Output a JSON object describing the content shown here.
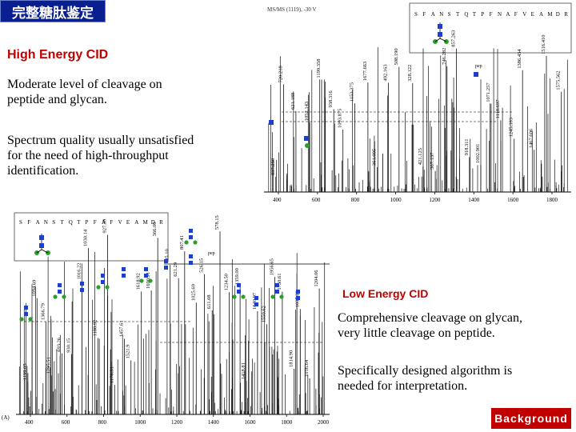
{
  "header": {
    "title": "完整糖肽鉴定"
  },
  "high_energy": {
    "heading": "High Energy CID",
    "text1_line1": "Moderate level of cleavage on",
    "text1_line2": "peptide and glycan.",
    "text2_line1": "Spectrum quality usually unsatisfied",
    "text2_line2": "for the need of high-throughput",
    "text2_line3": "identification."
  },
  "low_energy": {
    "heading": "Low Energy CID",
    "text1_line1": "Comprehensive cleavage on glycan,",
    "text1_line2": "very little cleavage on peptide.",
    "text2_line1": "Specifically designed algorithm is",
    "text2_line2": "needed for interpretation."
  },
  "footer": {
    "badge": "Background"
  },
  "spectrum_top": {
    "caption": "MS/MS (1119), -30 V",
    "sequence": [
      "S",
      "F",
      "A",
      "N",
      "S",
      "T",
      "Q",
      "T",
      "P",
      "F",
      "N",
      "A",
      "F",
      "V",
      "E",
      "A",
      "M",
      "D",
      "R"
    ],
    "peak_labels": [
      "837.250",
      "720.218",
      "621.188",
      "1052.143",
      "1199.358",
      "938.316",
      "1093.875",
      "1153.375",
      "1677.663",
      "361.095",
      "492.163",
      "508.190",
      "328.122",
      "421.125",
      "367.137",
      "746.282",
      "857.263",
      "918.311",
      "1002.901",
      "1071.257",
      "1118.697",
      "1245.393",
      "1386.434",
      "1467.606",
      "1516.410",
      "1575.562"
    ],
    "x_ticks": [
      "400",
      "600",
      "800",
      "1000",
      "1200",
      "1400",
      "1600",
      "1800"
    ],
    "annotation": "pep"
  },
  "spectrum_bottom": {
    "panel_label": "(A)",
    "sequence": [
      "S",
      "F",
      "A",
      "N",
      "S",
      "T",
      "Q",
      "T",
      "P",
      "F",
      "A",
      "F",
      "V",
      "E",
      "A",
      "M",
      "D",
      "R"
    ],
    "peak_labels": [
      "1199.05",
      "1094.69",
      "1366.79",
      "1295.51",
      "693.26",
      "930.15",
      "1016.22",
      "1030.14",
      "1180.92",
      "927.39",
      "1176.51",
      "1457.61",
      "1521.9",
      "1618.92",
      "1690.91",
      "366.00",
      "485.10",
      "621.29",
      "807.41",
      "1025.69",
      "526.15",
      "611.08",
      "578.15",
      "1234.50",
      "1359.00",
      "1418.81",
      "1640.97",
      "1550.62",
      "1956.65",
      "1750.61",
      "1814.90",
      "1037.29",
      "1016.64",
      "1204.06"
    ],
    "x_ticks": [
      "400",
      "600",
      "800",
      "1000",
      "1200",
      "1400",
      "1600",
      "1800",
      "2000"
    ],
    "annotation": "pep"
  }
}
